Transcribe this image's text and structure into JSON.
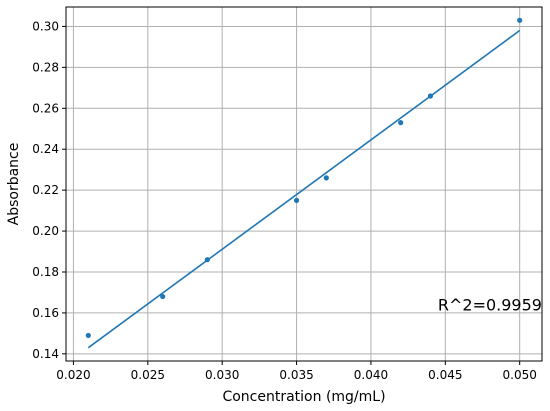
{
  "chart_data": {
    "type": "scatter",
    "xlabel": "Concentration (mg/mL)",
    "ylabel": "Absorbance",
    "xlim": [
      0.0195,
      0.0515
    ],
    "ylim": [
      0.1365,
      0.3095
    ],
    "xticks": [
      0.02,
      0.025,
      0.03,
      0.035,
      0.04,
      0.045,
      0.05
    ],
    "xtick_labels": [
      "0.020",
      "0.025",
      "0.030",
      "0.035",
      "0.040",
      "0.045",
      "0.050"
    ],
    "yticks": [
      0.14,
      0.16,
      0.18,
      0.2,
      0.22,
      0.24,
      0.26,
      0.28,
      0.3
    ],
    "ytick_labels": [
      "0.14",
      "0.16",
      "0.18",
      "0.20",
      "0.22",
      "0.24",
      "0.26",
      "0.28",
      "0.30"
    ],
    "grid": true,
    "series": [
      {
        "type": "scatter",
        "x": [
          0.021,
          0.026,
          0.029,
          0.035,
          0.037,
          0.042,
          0.044,
          0.05
        ],
        "y": [
          0.149,
          0.168,
          0.186,
          0.215,
          0.226,
          0.253,
          0.266,
          0.303
        ]
      },
      {
        "type": "line",
        "x": [
          0.021,
          0.05
        ],
        "y": [
          0.143,
          0.298
        ]
      }
    ],
    "annotation": "R^2=0.9959",
    "annotation_anchor": {
      "x": 0.0445,
      "y": 0.1612
    },
    "colors": {
      "series": "#1f77b4",
      "grid": "#b0b0b0",
      "axes": "#000000"
    }
  }
}
